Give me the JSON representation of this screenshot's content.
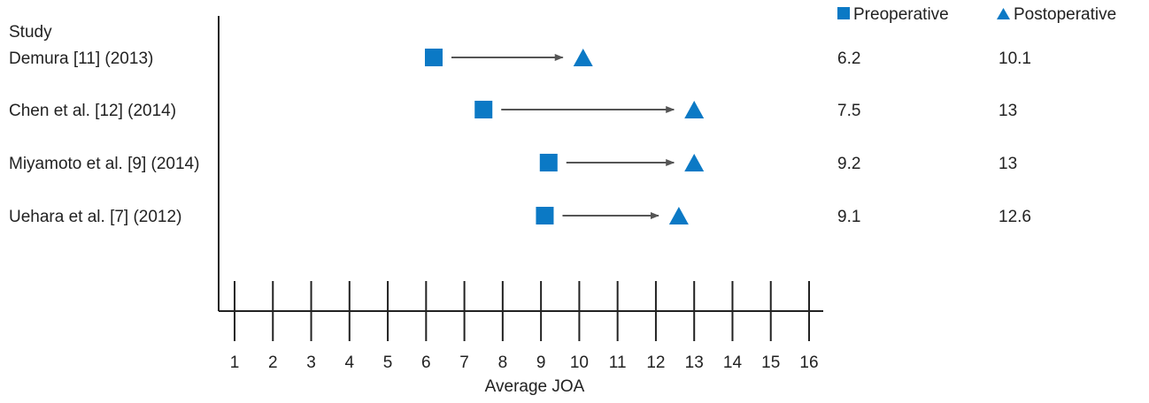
{
  "chart_data": {
    "type": "scatter",
    "title": "",
    "xlabel": "Average JOA",
    "ylabel": "",
    "study_header": "Study",
    "xlim": [
      1,
      16
    ],
    "xticks": [
      "1",
      "2",
      "3",
      "4",
      "5",
      "6",
      "7",
      "8",
      "9",
      "10",
      "11",
      "12",
      "13",
      "14",
      "15",
      "16"
    ],
    "grid": false,
    "legend_position": "top-right",
    "series": [
      {
        "name": "Preoperative",
        "marker": "square",
        "color": "#0b79c5"
      },
      {
        "name": "Postoperative",
        "marker": "triangle",
        "color": "#0b79c5"
      }
    ],
    "arrow_color": "#555555",
    "rows": [
      {
        "study": "Demura [11] (2013)",
        "pre": 6.2,
        "post": 10.1,
        "pre_label": "6.2",
        "post_label": "10.1"
      },
      {
        "study": "Chen et al. [12] (2014)",
        "pre": 7.5,
        "post": 13,
        "pre_label": "7.5",
        "post_label": "13"
      },
      {
        "study": "Miyamoto et al. [9] (2014)",
        "pre": 9.2,
        "post": 13,
        "pre_label": "9.2",
        "post_label": "13"
      },
      {
        "study": "Uehara et al. [7] (2012)",
        "pre": 9.1,
        "post": 12.6,
        "pre_label": "9.1",
        "post_label": "12.6"
      }
    ]
  }
}
